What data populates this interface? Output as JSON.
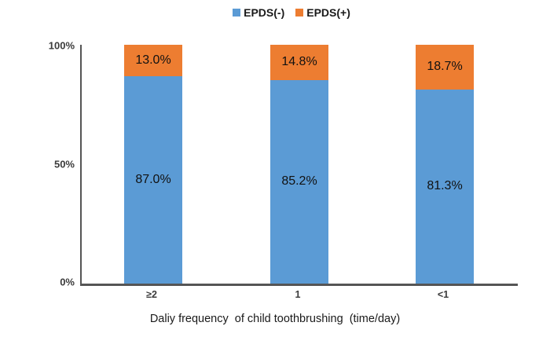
{
  "chart_data": {
    "type": "bar",
    "stacked": true,
    "percent_stacked": true,
    "categories": [
      "≥2",
      "1",
      "<1"
    ],
    "series": [
      {
        "name": "EPDS(-)",
        "color": "#5B9BD5",
        "values": [
          87.0,
          85.2,
          81.3
        ]
      },
      {
        "name": "EPDS(+)",
        "color": "#ED7D31",
        "values": [
          13.0,
          14.8,
          18.7
        ]
      }
    ],
    "data_labels": {
      "negative": [
        "87.0%",
        "85.2%",
        "81.3%"
      ],
      "positive": [
        "13.0%",
        "14.8%",
        "18.7%"
      ]
    },
    "title": "",
    "xlabel": "Daliy frequency  of child toothbrushing  (time/day)",
    "ylabel": "",
    "yticks": [
      "100%",
      "50%",
      "0%"
    ],
    "ylim": [
      0,
      100
    ],
    "grid": false,
    "legend_position": "top",
    "axis_color": "#555555"
  }
}
